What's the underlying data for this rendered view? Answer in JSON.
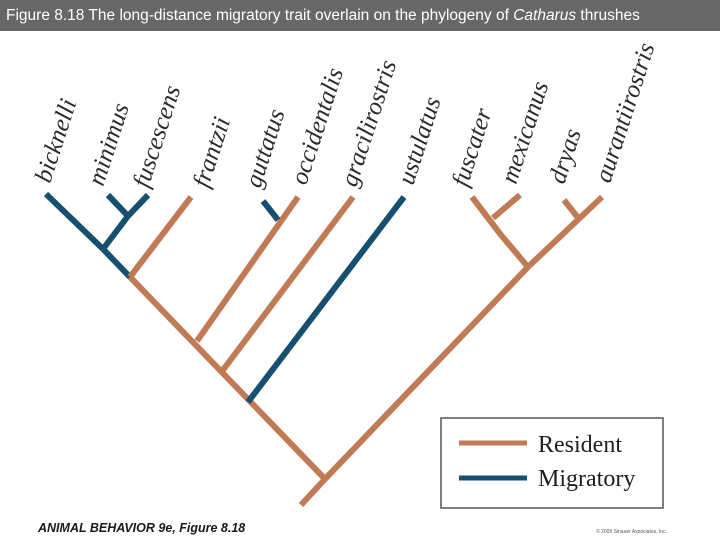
{
  "header": {
    "prefix": "Figure 8.18  The long-distance migratory trait overlain on the phylogeny of ",
    "genus": "Catharus",
    "suffix": " thrushes"
  },
  "colors": {
    "resident": "#c07a55",
    "migratory": "#17506e"
  },
  "species": [
    {
      "label": "bicknelli",
      "trait": "Migratory"
    },
    {
      "label": "minimus",
      "trait": "Migratory"
    },
    {
      "label": "fuscescens",
      "trait": "Migratory"
    },
    {
      "label": "frantzii",
      "trait": "Resident"
    },
    {
      "label": "guttatus",
      "trait": "Migratory"
    },
    {
      "label": "occidentalis",
      "trait": "Resident"
    },
    {
      "label": "gracilirostris",
      "trait": "Resident"
    },
    {
      "label": "ustulatus",
      "trait": "Migratory"
    },
    {
      "label": "fuscater",
      "trait": "Resident"
    },
    {
      "label": "mexicanus",
      "trait": "Resident"
    },
    {
      "label": "dryas",
      "trait": "Resident"
    },
    {
      "label": "aurantiirostris",
      "trait": "Resident"
    }
  ],
  "legend": {
    "resident_label": "Resident",
    "migratory_label": "Migratory"
  },
  "footer": {
    "credit": "ANIMAL BEHAVIOR 9e, Figure 8.18",
    "copyright": "© 2009 Sinauer Associates, Inc."
  }
}
